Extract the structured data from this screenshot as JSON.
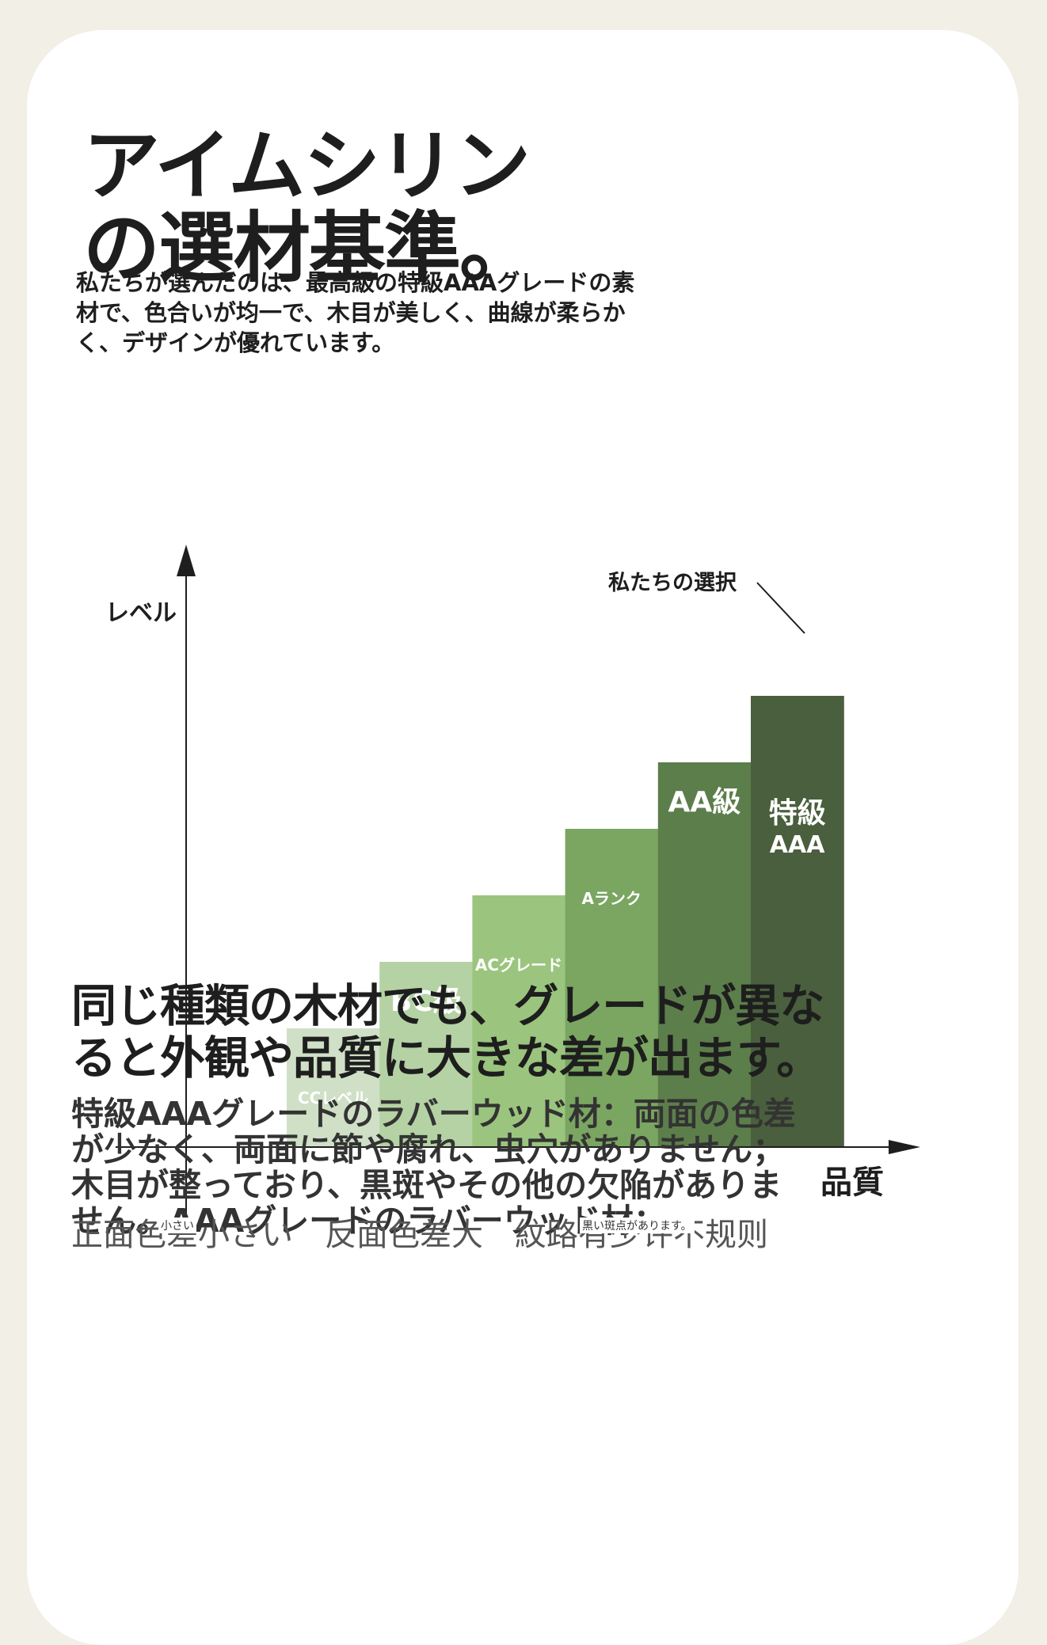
{
  "header": {
    "title_line1": "アイムシリン",
    "title_line2": "の選材基準。"
  },
  "intro": {
    "line1": "私たちが選んだのは、最高級の特級AAAグレードの素",
    "line2": "材で、色合いが均一で、木目が美しく、曲線が柔らか",
    "line3": "く、デザインが優れています。"
  },
  "chart_data": {
    "type": "bar",
    "ylabel": "レベル",
    "xlabel": "品質",
    "annotation": "私たちの選択",
    "categories": [
      "CCレベル",
      "BC級",
      "ACグレード",
      "Aランク",
      "AA級",
      "特級AAA"
    ],
    "label_lines": [
      [
        "CCレベル"
      ],
      [
        "BC級"
      ],
      [
        "ACグレード"
      ],
      [
        "Aランク"
      ],
      [
        "AA級"
      ],
      [
        "特級",
        "AAA"
      ]
    ],
    "values": [
      1,
      2,
      3,
      4,
      5,
      6
    ],
    "colors": [
      "#cfe0c6",
      "#b5d2a4",
      "#9bc57e",
      "#7aa661",
      "#5c7e4b",
      "#4a5f3d"
    ],
    "label_weights": [
      "small",
      "large",
      "small",
      "small",
      "large",
      "large"
    ],
    "grid": false,
    "legend": "none"
  },
  "section": {
    "heading_line1": "同じ種類の木材でも、グレードが異な",
    "heading_line2": "ると外観や品質に大きな差が出ます。"
  },
  "body": {
    "line1": "特級AAAグレードのラバーウッド材：両面の色差",
    "line2": "が少なく、両面に節や腐れ、虫穴がありません；",
    "line3": "木目が整っており、黒斑やその他の欠陥がありま",
    "line4": "せん。AAAグレードのラバーウッド材："
  },
  "tail": {
    "main_text": "正面色差小さい　反面色差大　紋路有少许不规则",
    "small_a": "小さい",
    "small_b": "黒い斑点があります。"
  }
}
